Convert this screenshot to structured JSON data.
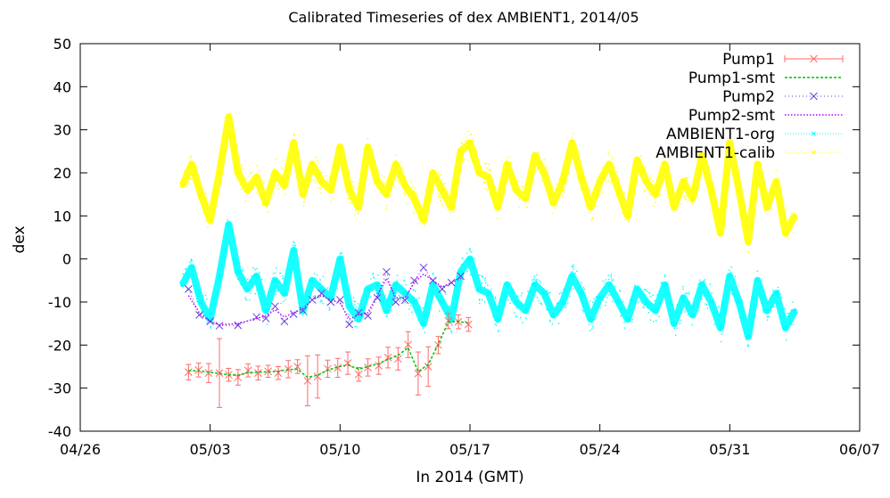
{
  "chart_data": {
    "type": "line",
    "title": "Calibrated Timeseries of dex AMBIENT1, 2014/05",
    "xlabel": "In 2014 (GMT)",
    "ylabel": "dex",
    "x_ticks": [
      "04/26",
      "05/03",
      "05/10",
      "05/17",
      "05/24",
      "05/31",
      "06/07"
    ],
    "xlim": [
      "2014-04-26",
      "2014-06-07"
    ],
    "ylim": [
      -40,
      50
    ],
    "y_ticks": [
      -40,
      -30,
      -20,
      -10,
      0,
      10,
      20,
      30,
      40,
      50
    ],
    "grid": false,
    "legend_position": "top-right",
    "series": [
      {
        "name": "Pump1",
        "color": "#ff6a6a",
        "style": "points-errorbars",
        "marker": "x",
        "x": [
          "2014-05-01 20:00",
          "2014-05-02 09:00",
          "2014-05-02 22:00",
          "2014-05-03 12:00",
          "2014-05-04 00:00",
          "2014-05-04 12:00",
          "2014-05-05 01:00",
          "2014-05-05 14:00",
          "2014-05-06 03:00",
          "2014-05-06 16:00",
          "2014-05-07 05:00",
          "2014-05-07 17:00",
          "2014-05-08 06:00",
          "2014-05-08 19:00",
          "2014-05-09 08:00",
          "2014-05-09 21:00",
          "2014-05-10 10:00",
          "2014-05-11 00:00",
          "2014-05-11 12:00",
          "2014-05-12 02:00",
          "2014-05-12 14:00",
          "2014-05-13 03:00",
          "2014-05-13 16:00",
          "2014-05-14 05:00",
          "2014-05-14 18:00",
          "2014-05-15 07:00",
          "2014-05-15 20:00",
          "2014-05-16 09:00",
          "2014-05-16 22:00"
        ],
        "values": [
          -26.3,
          -25.8,
          -26.5,
          -26.5,
          -26.9,
          -27.5,
          -25.9,
          -26.5,
          -26.1,
          -26.5,
          -25.6,
          -25.0,
          -28.3,
          -27.3,
          -25.5,
          -25.3,
          -24.2,
          -26.8,
          -25.2,
          -24.8,
          -22.9,
          -23.2,
          -19.9,
          -26.6,
          -25.0,
          -20.0,
          -14.4,
          -14.6,
          -15.2
        ],
        "errors": [
          1.8,
          1.6,
          2.2,
          8.0,
          1.5,
          1.8,
          1.5,
          1.6,
          1.4,
          1.5,
          2.0,
          1.6,
          5.8,
          5.0,
          2.0,
          2.2,
          2.6,
          1.6,
          2.0,
          2.0,
          2.4,
          2.6,
          3.0,
          5.0,
          4.6,
          2.0,
          1.8,
          1.6,
          1.6
        ]
      },
      {
        "name": "Pump1-smt",
        "color": "#00c000",
        "style": "dashed-line",
        "x": [
          "2014-05-01 20:00",
          "2014-05-02 09:00",
          "2014-05-02 22:00",
          "2014-05-03 12:00",
          "2014-05-04 00:00",
          "2014-05-04 12:00",
          "2014-05-05 01:00",
          "2014-05-05 14:00",
          "2014-05-06 03:00",
          "2014-05-06 16:00",
          "2014-05-07 05:00",
          "2014-05-07 17:00",
          "2014-05-08 06:00",
          "2014-05-08 19:00",
          "2014-05-09 08:00",
          "2014-05-09 21:00",
          "2014-05-10 10:00",
          "2014-05-11 00:00",
          "2014-05-11 12:00",
          "2014-05-12 02:00",
          "2014-05-12 14:00",
          "2014-05-13 03:00",
          "2014-05-13 16:00",
          "2014-05-14 05:00",
          "2014-05-14 18:00",
          "2014-05-15 07:00",
          "2014-05-15 20:00",
          "2014-05-16 09:00",
          "2014-05-16 22:00"
        ],
        "values": [
          -26.0,
          -26.0,
          -26.3,
          -26.6,
          -26.9,
          -27.0,
          -26.4,
          -26.3,
          -26.2,
          -26.1,
          -25.7,
          -25.6,
          -27.5,
          -27.0,
          -25.8,
          -25.1,
          -24.6,
          -25.6,
          -25.0,
          -24.3,
          -23.3,
          -22.4,
          -20.6,
          -26.2,
          -24.5,
          -19.8,
          -14.6,
          -14.5,
          -14.9
        ]
      },
      {
        "name": "Pump2",
        "color": "#6a3bdb",
        "style": "points-dotted",
        "marker": "x",
        "x": [
          "2014-05-01 20:00",
          "2014-05-02 10:00",
          "2014-05-03 00:00",
          "2014-05-03 12:00",
          "2014-05-04 12:00",
          "2014-05-05 12:00",
          "2014-05-06 00:00",
          "2014-05-06 12:00",
          "2014-05-07 00:00",
          "2014-05-07 12:00",
          "2014-05-08 00:00",
          "2014-05-08 12:00",
          "2014-05-09 00:00",
          "2014-05-09 12:00",
          "2014-05-10 00:00",
          "2014-05-10 12:00",
          "2014-05-11 00:00",
          "2014-05-11 12:00",
          "2014-05-12 00:00",
          "2014-05-12 12:00",
          "2014-05-13 00:00",
          "2014-05-13 12:00",
          "2014-05-14 00:00",
          "2014-05-14 12:00",
          "2014-05-15 00:00",
          "2014-05-15 12:00",
          "2014-05-16 00:00",
          "2014-05-16 12:00"
        ],
        "values": [
          -7.0,
          -13.0,
          -14.5,
          -15.5,
          -15.4,
          -13.5,
          -13.8,
          -11.0,
          -14.5,
          -12.8,
          -12.0,
          -9.5,
          -8.0,
          -10.0,
          -9.5,
          -15.2,
          -12.5,
          -13.2,
          -9.0,
          -3.0,
          -10.0,
          -9.6,
          -5.0,
          -2.0,
          -5.0,
          -7.0,
          -5.5,
          -4.0
        ]
      },
      {
        "name": "Pump2-smt",
        "color": "#c000ff",
        "style": "dotted-line",
        "x": [
          "2014-05-01 20:00",
          "2014-05-02 10:00",
          "2014-05-03 00:00",
          "2014-05-03 12:00",
          "2014-05-04 12:00",
          "2014-05-05 12:00",
          "2014-05-06 00:00",
          "2014-05-06 12:00",
          "2014-05-07 00:00",
          "2014-05-07 12:00",
          "2014-05-08 00:00",
          "2014-05-08 12:00",
          "2014-05-09 00:00",
          "2014-05-09 12:00",
          "2014-05-10 00:00",
          "2014-05-10 12:00",
          "2014-05-11 00:00",
          "2014-05-11 12:00",
          "2014-05-12 00:00",
          "2014-05-12 12:00",
          "2014-05-13 00:00",
          "2014-05-13 12:00",
          "2014-05-14 00:00",
          "2014-05-14 12:00",
          "2014-05-15 00:00",
          "2014-05-15 12:00",
          "2014-05-16 00:00",
          "2014-05-16 12:00"
        ],
        "values": [
          -8.5,
          -12.5,
          -14.5,
          -15.3,
          -15.0,
          -13.8,
          -13.2,
          -11.8,
          -13.5,
          -12.5,
          -11.5,
          -9.5,
          -8.5,
          -9.5,
          -10.2,
          -14.0,
          -13.0,
          -12.5,
          -8.5,
          -4.5,
          -9.0,
          -9.0,
          -5.5,
          -3.5,
          -5.0,
          -6.5,
          -5.5,
          -4.5
        ]
      },
      {
        "name": "AMBIENT1-org",
        "color": "#00ffff",
        "style": "dense-points",
        "x": [
          "2014-05-01 12:00",
          "2014-05-02 00:00",
          "2014-05-02 12:00",
          "2014-05-03 00:00",
          "2014-05-03 12:00",
          "2014-05-04 00:00",
          "2014-05-04 12:00",
          "2014-05-05 00:00",
          "2014-05-05 12:00",
          "2014-05-06 00:00",
          "2014-05-06 12:00",
          "2014-05-07 00:00",
          "2014-05-07 12:00",
          "2014-05-08 00:00",
          "2014-05-08 12:00",
          "2014-05-09 00:00",
          "2014-05-09 12:00",
          "2014-05-10 00:00",
          "2014-05-10 12:00",
          "2014-05-11 00:00",
          "2014-05-11 12:00",
          "2014-05-12 00:00",
          "2014-05-12 12:00",
          "2014-05-13 00:00",
          "2014-05-13 12:00",
          "2014-05-14 00:00",
          "2014-05-14 12:00",
          "2014-05-15 00:00",
          "2014-05-15 12:00",
          "2014-05-16 00:00",
          "2014-05-16 12:00",
          "2014-05-17 00:00",
          "2014-05-17 12:00",
          "2014-05-18 00:00",
          "2014-05-18 12:00",
          "2014-05-19 00:00",
          "2014-05-19 12:00",
          "2014-05-20 00:00",
          "2014-05-20 12:00",
          "2014-05-21 00:00",
          "2014-05-21 12:00",
          "2014-05-22 00:00",
          "2014-05-22 12:00",
          "2014-05-23 00:00",
          "2014-05-23 12:00",
          "2014-05-24 00:00",
          "2014-05-24 12:00",
          "2014-05-25 00:00",
          "2014-05-25 12:00",
          "2014-05-26 00:00",
          "2014-05-26 12:00",
          "2014-05-27 00:00",
          "2014-05-27 12:00",
          "2014-05-28 00:00",
          "2014-05-28 12:00",
          "2014-05-29 00:00",
          "2014-05-29 12:00",
          "2014-05-30 00:00",
          "2014-05-30 12:00",
          "2014-05-31 00:00",
          "2014-05-31 12:00",
          "2014-06-01 00:00",
          "2014-06-01 12:00",
          "2014-06-02 00:00",
          "2014-06-02 12:00",
          "2014-06-03 00:00",
          "2014-06-03 12:00"
        ],
        "values": [
          -6,
          -2,
          -10,
          -14,
          -4,
          8,
          -3,
          -7,
          -4,
          -12,
          -5,
          -8,
          2,
          -12,
          -5,
          -7,
          -9,
          0,
          -11,
          -14,
          -7,
          -6,
          -12,
          -6,
          -8,
          -10,
          -15,
          -6,
          -10,
          -14,
          -3,
          0,
          -7,
          -8,
          -14,
          -6,
          -10,
          -12,
          -6,
          -8,
          -13,
          -10,
          -4,
          -8,
          -14,
          -9,
          -6,
          -10,
          -14,
          -7,
          -10,
          -12,
          -6,
          -15,
          -9,
          -13,
          -6,
          -10,
          -16,
          -4,
          -10,
          -18,
          -5,
          -12,
          -8,
          -16,
          -12
        ]
      },
      {
        "name": "AMBIENT1-calib",
        "color": "#ffff00",
        "style": "dense-points",
        "x": [
          "2014-05-01 12:00",
          "2014-05-02 00:00",
          "2014-05-02 12:00",
          "2014-05-03 00:00",
          "2014-05-03 12:00",
          "2014-05-04 00:00",
          "2014-05-04 12:00",
          "2014-05-05 00:00",
          "2014-05-05 12:00",
          "2014-05-06 00:00",
          "2014-05-06 12:00",
          "2014-05-07 00:00",
          "2014-05-07 12:00",
          "2014-05-08 00:00",
          "2014-05-08 12:00",
          "2014-05-09 00:00",
          "2014-05-09 12:00",
          "2014-05-10 00:00",
          "2014-05-10 12:00",
          "2014-05-11 00:00",
          "2014-05-11 12:00",
          "2014-05-12 00:00",
          "2014-05-12 12:00",
          "2014-05-13 00:00",
          "2014-05-13 12:00",
          "2014-05-14 00:00",
          "2014-05-14 12:00",
          "2014-05-15 00:00",
          "2014-05-15 12:00",
          "2014-05-16 00:00",
          "2014-05-16 12:00",
          "2014-05-17 00:00",
          "2014-05-17 12:00",
          "2014-05-18 00:00",
          "2014-05-18 12:00",
          "2014-05-19 00:00",
          "2014-05-19 12:00",
          "2014-05-20 00:00",
          "2014-05-20 12:00",
          "2014-05-21 00:00",
          "2014-05-21 12:00",
          "2014-05-22 00:00",
          "2014-05-22 12:00",
          "2014-05-23 00:00",
          "2014-05-23 12:00",
          "2014-05-24 00:00",
          "2014-05-24 12:00",
          "2014-05-25 00:00",
          "2014-05-25 12:00",
          "2014-05-26 00:00",
          "2014-05-26 12:00",
          "2014-05-27 00:00",
          "2014-05-27 12:00",
          "2014-05-28 00:00",
          "2014-05-28 12:00",
          "2014-05-29 00:00",
          "2014-05-29 12:00",
          "2014-05-30 00:00",
          "2014-05-30 12:00",
          "2014-05-31 00:00",
          "2014-05-31 12:00",
          "2014-06-01 00:00",
          "2014-06-01 12:00",
          "2014-06-02 00:00",
          "2014-06-02 12:00",
          "2014-06-03 00:00",
          "2014-06-03 12:00"
        ],
        "values": [
          17,
          22,
          15,
          9,
          20,
          33,
          20,
          16,
          19,
          13,
          20,
          17,
          27,
          15,
          22,
          18,
          16,
          26,
          16,
          12,
          26,
          18,
          15,
          22,
          17,
          14,
          9,
          20,
          16,
          12,
          25,
          27,
          20,
          19,
          12,
          22,
          16,
          14,
          24,
          20,
          13,
          18,
          27,
          19,
          12,
          18,
          22,
          16,
          10,
          23,
          18,
          15,
          22,
          12,
          18,
          14,
          24,
          16,
          6,
          27,
          16,
          4,
          22,
          12,
          18,
          6,
          10
        ]
      }
    ]
  }
}
